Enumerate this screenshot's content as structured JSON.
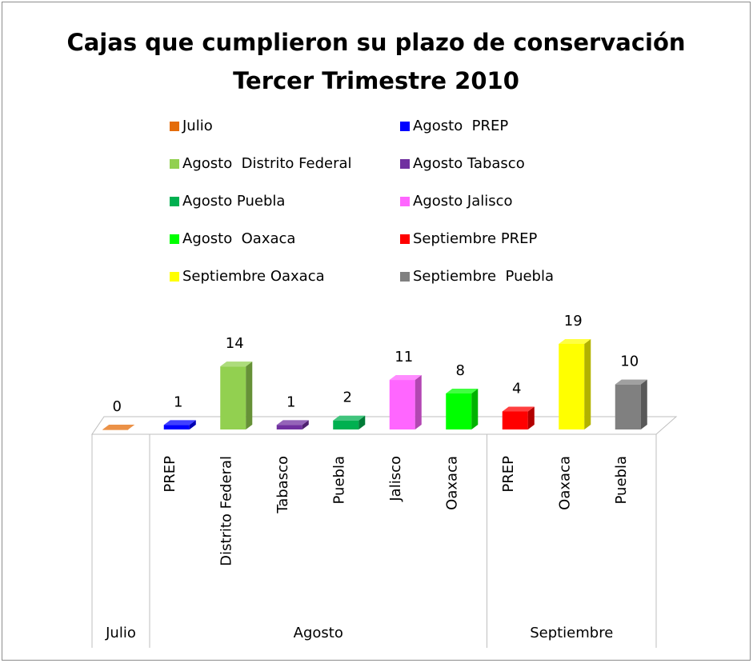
{
  "chart_data": {
    "type": "bar3d",
    "title": "Cajas que cumplieron su plazo de conservación",
    "subtitle": "Tercer Trimestre 2010",
    "groups": [
      {
        "name": "Julio",
        "categories": [
          null
        ]
      },
      {
        "name": "Agosto",
        "categories": [
          "PREP",
          "Distrito Federal",
          "Tabasco",
          "Puebla",
          "Jalisco",
          "Oaxaca"
        ]
      },
      {
        "name": "Septiembre",
        "categories": [
          "PREP",
          "Oaxaca",
          "Puebla"
        ]
      }
    ],
    "series": [
      {
        "name": "Julio",
        "color": "#e46c0a",
        "values": [
          0
        ]
      },
      {
        "name": "Agosto  PREP",
        "color": "#0000ff",
        "values": [
          1
        ]
      },
      {
        "name": "Agosto  Distrito Federal",
        "color": "#92d050",
        "values": [
          14
        ]
      },
      {
        "name": "Agosto Tabasco",
        "color": "#7030a0",
        "values": [
          1
        ]
      },
      {
        "name": "Agosto Puebla",
        "color": "#00b050",
        "values": [
          2
        ]
      },
      {
        "name": "Agosto Jalisco",
        "color": "#ff66ff",
        "values": [
          11
        ]
      },
      {
        "name": "Agosto  Oaxaca",
        "color": "#00ff00",
        "values": [
          8
        ]
      },
      {
        "name": "Septiembre PREP",
        "color": "#ff0000",
        "values": [
          4
        ]
      },
      {
        "name": "Septiembre Oaxaca",
        "color": "#ffff00",
        "values": [
          19
        ]
      },
      {
        "name": "Septiembre  Puebla",
        "color": "#808080",
        "values": [
          10
        ]
      }
    ]
  }
}
